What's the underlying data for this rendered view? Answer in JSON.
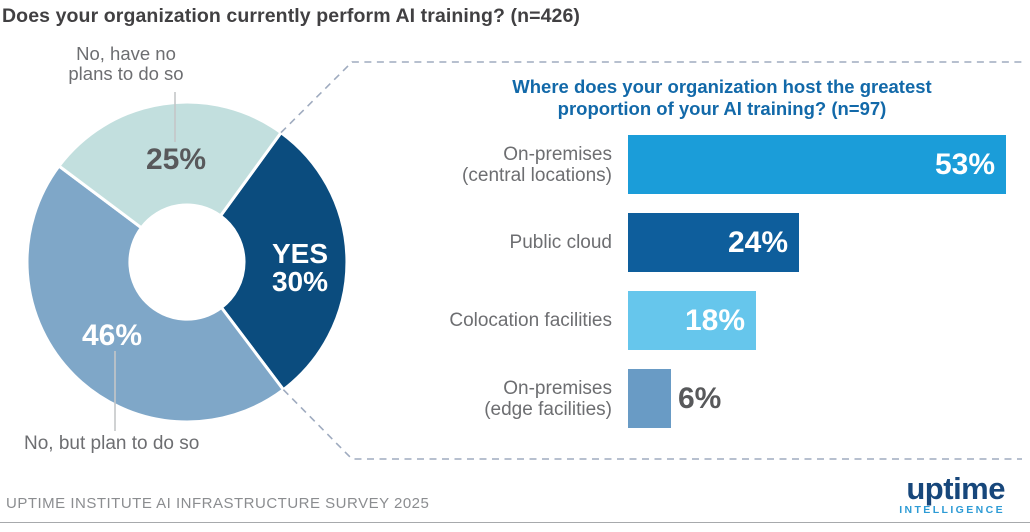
{
  "page": {
    "title": "Does your organization currently perform AI training? (n=426)",
    "footer": "UPTIME INSTITUTE AI INFRASTRUCTURE SURVEY 2025",
    "logo": {
      "wordmark": "uptime",
      "sub_brand": "INTELLIGENCE"
    }
  },
  "colors": {
    "title_text": "#414042",
    "label_gray": "#6D6E71",
    "value_gray": "#58595B",
    "footer_gray": "#8B8D90",
    "rule_gray": "#A7A9AC",
    "callout_dash": "#9FABBF",
    "leader_line": "#C4C6C8",
    "panel_title_blue": "#1269A9",
    "logo_navy": "#17477B",
    "logo_blue": "#2D9BD5",
    "white": "#FFFFFF"
  },
  "chart_data": [
    {
      "type": "pie",
      "subtype": "donut",
      "title": "Does your organization currently perform AI training? (n=426)",
      "n": 426,
      "start_angle_deg_clockwise_from_top": 36,
      "segments": [
        {
          "label": "YES",
          "value": 30,
          "display_lines": [
            "YES",
            "30%"
          ],
          "color": "#0B4C7E",
          "text_color": "#FFFFFF"
        },
        {
          "label": "No, but plan to do so",
          "value": 46,
          "display": "46%",
          "color": "#7FA7C8",
          "text_color": "#FFFFFF"
        },
        {
          "label": "No, have no plans to do so",
          "label_lines": [
            "No, have no",
            "plans to do so"
          ],
          "value": 25,
          "display": "25%",
          "color": "#C2DFDE",
          "text_color": "#58595B"
        }
      ]
    },
    {
      "type": "bar",
      "orientation": "horizontal",
      "title": "Where does your organization host the greatest proportion of your AI training? (n=97)",
      "title_lines": [
        "Where does your organization host the greatest",
        "proportion of your AI training? (n=97)"
      ],
      "n": 97,
      "unit": "%",
      "xlim": [
        0,
        56
      ],
      "grid": false,
      "legend": false,
      "categories": [
        "On-premises (central locations)",
        "Public cloud",
        "Colocation facilities",
        "On-premises (edge facilities)"
      ],
      "values": [
        53,
        24,
        18,
        6
      ],
      "bars": [
        {
          "label": "On-premises (central locations)",
          "label_lines": [
            "On-premises",
            "(central locations)"
          ],
          "value": 53,
          "display": "53%",
          "color": "#1B9DD9",
          "value_inside": true
        },
        {
          "label": "Public cloud",
          "label_lines": [
            "Public cloud"
          ],
          "value": 24,
          "display": "24%",
          "color": "#0E5E9C",
          "value_inside": true
        },
        {
          "label": "Colocation facilities",
          "label_lines": [
            "Colocation facilities"
          ],
          "value": 18,
          "display": "18%",
          "color": "#66C6EC",
          "value_inside": true
        },
        {
          "label": "On-premises (edge facilities)",
          "label_lines": [
            "On-premises",
            "(edge facilities)"
          ],
          "value": 6,
          "display": "6%",
          "color": "#699BC5",
          "value_inside": false
        }
      ]
    }
  ]
}
